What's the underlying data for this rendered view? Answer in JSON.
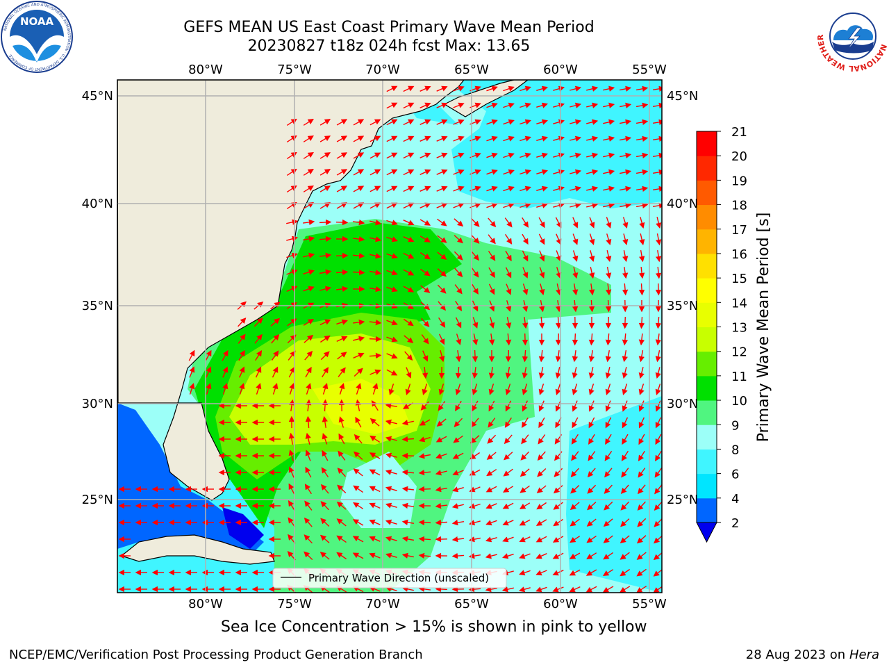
{
  "header": {
    "line1": "GEFS MEAN US East Coast Primary Wave Mean Period",
    "line2": "20230827 t18z 024h fcst   Max: 13.65"
  },
  "logos": {
    "left": {
      "text": "NOAA",
      "ring_text": "NATIONAL OCEANIC AND ATMOSPHERIC ADMINISTRATION · U.S. DEPARTMENT OF COMMERCE"
    },
    "right": {
      "ring_text": "NATIONAL WEATHER SERVICE"
    }
  },
  "map": {
    "lon_ticks": [
      "80°W",
      "75°W",
      "70°W",
      "65°W",
      "60°W",
      "55°W"
    ],
    "lat_ticks": [
      "45°N",
      "40°N",
      "35°N",
      "30°N",
      "25°N"
    ],
    "legend": "Primary Wave Direction (unscaled)",
    "colors": {
      "land": "#efecdc",
      "grid": "#b0b0b0",
      "arrow": "#ff0000"
    }
  },
  "colorbar": {
    "label": "Primary Wave Mean Period [s]",
    "ticks": [
      "2",
      "4",
      "6",
      "8",
      "9",
      "10",
      "11",
      "12",
      "13",
      "14",
      "15",
      "16",
      "17",
      "18",
      "19",
      "20",
      "21"
    ],
    "colors": [
      "#0066ff",
      "#00e5ff",
      "#40f5ff",
      "#9cfff8",
      "#50f580",
      "#00e000",
      "#66ee00",
      "#c8ff00",
      "#e8ff00",
      "#ffff00",
      "#ffe000",
      "#ffb400",
      "#ff8c00",
      "#ff5a00",
      "#ff2800",
      "#ff0000"
    ],
    "under_color": "#0000ee"
  },
  "notes": {
    "ice": "Sea Ice Concentration > 15% is shown in pink to yellow"
  },
  "footer": {
    "left": "NCEP/EMC/Verification Post Processing Product Generation Branch",
    "right_date": "28 Aug 2023 on",
    "right_host": "Hera"
  }
}
